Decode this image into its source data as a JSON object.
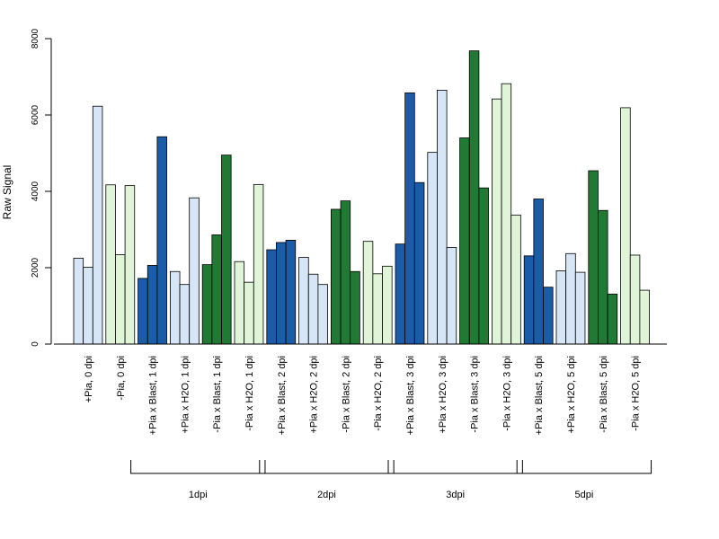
{
  "chart_data": {
    "type": "bar",
    "ylabel": "Raw Signal",
    "ylim": [
      0,
      8000
    ],
    "yticks": [
      0,
      2000,
      4000,
      6000,
      8000
    ],
    "colors": {
      "light_blue": "#d6e6f6",
      "dark_blue": "#1b5ca8",
      "light_green": "#e0f5d8",
      "dark_green": "#217a33"
    },
    "categories": [
      {
        "label": "+Pia, 0 dpi",
        "color": "light_blue",
        "values": [
          2250,
          2010,
          6230
        ]
      },
      {
        "label": "-Pia, 0 dpi",
        "color": "light_green",
        "values": [
          4170,
          2340,
          4150
        ]
      },
      {
        "label": "+Pia x Blast, 1 dpi",
        "color": "dark_blue",
        "values": [
          1720,
          2060,
          5430
        ]
      },
      {
        "label": "+Pia x H2O, 1 dpi",
        "color": "light_blue",
        "values": [
          1900,
          1560,
          3830
        ]
      },
      {
        "label": "-Pia x Blast, 1 dpi",
        "color": "dark_green",
        "values": [
          2080,
          2860,
          4950
        ]
      },
      {
        "label": "-Pia x H2O, 1 dpi",
        "color": "light_green",
        "values": [
          2160,
          1620,
          4180
        ]
      },
      {
        "label": "+Pia x Blast, 2 dpi",
        "color": "dark_blue",
        "values": [
          2470,
          2660,
          2720
        ]
      },
      {
        "label": "+Pia x H2O, 2 dpi",
        "color": "light_blue",
        "values": [
          2270,
          1830,
          1560
        ]
      },
      {
        "label": "-Pia x Blast, 2 dpi",
        "color": "dark_green",
        "values": [
          3530,
          3750,
          1900
        ]
      },
      {
        "label": "-Pia x H2O, 2 dpi",
        "color": "light_green",
        "values": [
          2690,
          1840,
          2040
        ]
      },
      {
        "label": "+Pia x Blast, 3 dpi",
        "color": "dark_blue",
        "values": [
          2620,
          6580,
          4230
        ]
      },
      {
        "label": "+Pia x H2O, 3 dpi",
        "color": "light_blue",
        "values": [
          5020,
          6650,
          2530
        ]
      },
      {
        "label": "-Pia x Blast, 3 dpi",
        "color": "dark_green",
        "values": [
          5400,
          7680,
          4090
        ]
      },
      {
        "label": "-Pia x H2O, 3 dpi",
        "color": "light_green",
        "values": [
          6420,
          6820,
          3380
        ]
      },
      {
        "label": "+Pia x Blast, 5 dpi",
        "color": "dark_blue",
        "values": [
          2310,
          3800,
          1490
        ]
      },
      {
        "label": "+Pia x H2O, 5 dpi",
        "color": "light_blue",
        "values": [
          1920,
          2370,
          1880
        ]
      },
      {
        "label": "-Pia x Blast, 5 dpi",
        "color": "dark_green",
        "values": [
          4540,
          3500,
          1310
        ]
      },
      {
        "label": "-Pia x H2O, 5 dpi",
        "color": "light_green",
        "values": [
          6190,
          2330,
          1410
        ]
      }
    ],
    "groups": [
      {
        "label": "1dpi",
        "start": 2,
        "end": 5
      },
      {
        "label": "2dpi",
        "start": 6,
        "end": 9
      },
      {
        "label": "3dpi",
        "start": 10,
        "end": 13
      },
      {
        "label": "5dpi",
        "start": 14,
        "end": 17
      }
    ],
    "grid": false,
    "legend": "none"
  }
}
